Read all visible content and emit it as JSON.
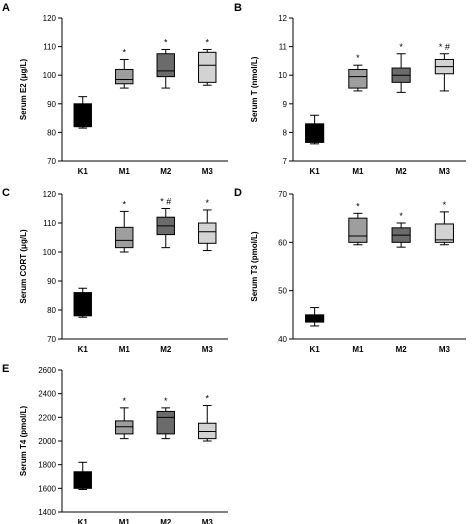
{
  "chart_data": [
    {
      "panel": "A",
      "type": "box",
      "ylabel": "Serum E2 (μg/L)",
      "categories": [
        "K1",
        "M1",
        "M2",
        "M3"
      ],
      "ylim": [
        70,
        120
      ],
      "yticks": [
        70,
        80,
        90,
        100,
        110,
        120
      ],
      "boxes": [
        {
          "min": 81.5,
          "q1": 82,
          "median": 83,
          "q3": 90,
          "max": 92.5,
          "color": "#000000",
          "sig": ""
        },
        {
          "min": 95.5,
          "q1": 97,
          "median": 98.5,
          "q3": 102,
          "max": 105.5,
          "color": "#9e9e9e",
          "sig": "*"
        },
        {
          "min": 95.5,
          "q1": 99.5,
          "median": 101.5,
          "q3": 107.5,
          "max": 109,
          "color": "#6b6b6b",
          "sig": "*"
        },
        {
          "min": 96.5,
          "q1": 97.5,
          "median": 103.5,
          "q3": 108,
          "max": 109,
          "color": "#d3d3d3",
          "sig": "*"
        }
      ]
    },
    {
      "panel": "B",
      "type": "box",
      "ylabel": "Serum T (nmol/L)",
      "categories": [
        "K1",
        "M1",
        "M2",
        "M3"
      ],
      "ylim": [
        7,
        12
      ],
      "yticks": [
        7,
        8,
        9,
        10,
        11,
        12
      ],
      "boxes": [
        {
          "min": 7.6,
          "q1": 7.65,
          "median": 7.7,
          "q3": 8.3,
          "max": 8.6,
          "color": "#000000",
          "sig": ""
        },
        {
          "min": 9.45,
          "q1": 9.55,
          "median": 9.95,
          "q3": 10.2,
          "max": 10.35,
          "color": "#9e9e9e",
          "sig": "*"
        },
        {
          "min": 9.4,
          "q1": 9.75,
          "median": 10.0,
          "q3": 10.25,
          "max": 10.75,
          "color": "#6b6b6b",
          "sig": "*"
        },
        {
          "min": 9.45,
          "q1": 10.05,
          "median": 10.3,
          "q3": 10.55,
          "max": 10.75,
          "color": "#d3d3d3",
          "sig": "* #"
        }
      ]
    },
    {
      "panel": "C",
      "type": "box",
      "ylabel": "Serum CORT (μg/L)",
      "categories": [
        "K1",
        "M1",
        "M2",
        "M3"
      ],
      "ylim": [
        70,
        120
      ],
      "yticks": [
        70,
        80,
        90,
        100,
        110,
        120
      ],
      "boxes": [
        {
          "min": 77.5,
          "q1": 78,
          "median": 78.5,
          "q3": 86,
          "max": 87.5,
          "color": "#000000",
          "sig": ""
        },
        {
          "min": 100,
          "q1": 101.5,
          "median": 104,
          "q3": 108.5,
          "max": 114,
          "color": "#9e9e9e",
          "sig": "*"
        },
        {
          "min": 101.5,
          "q1": 106,
          "median": 109,
          "q3": 112,
          "max": 115,
          "color": "#6b6b6b",
          "sig": "* #"
        },
        {
          "min": 100.5,
          "q1": 103,
          "median": 107,
          "q3": 110,
          "max": 114.5,
          "color": "#d3d3d3",
          "sig": "*"
        }
      ]
    },
    {
      "panel": "D",
      "type": "box",
      "ylabel": "Serum T3 (pmol/L)",
      "categories": [
        "K1",
        "M1",
        "M2",
        "M3"
      ],
      "ylim": [
        40,
        70
      ],
      "yticks": [
        40,
        50,
        60,
        70
      ],
      "boxes": [
        {
          "min": 42.7,
          "q1": 43.5,
          "median": 44.2,
          "q3": 45.0,
          "max": 46.5,
          "color": "#000000",
          "sig": ""
        },
        {
          "min": 59.5,
          "q1": 60.0,
          "median": 61.3,
          "q3": 65.0,
          "max": 66.0,
          "color": "#9e9e9e",
          "sig": "*"
        },
        {
          "min": 59.0,
          "q1": 60.0,
          "median": 61.5,
          "q3": 63.0,
          "max": 64.0,
          "color": "#6b6b6b",
          "sig": "*"
        },
        {
          "min": 59.5,
          "q1": 60.0,
          "median": 60.5,
          "q3": 63.8,
          "max": 66.3,
          "color": "#d3d3d3",
          "sig": "*"
        }
      ]
    },
    {
      "panel": "E",
      "type": "box",
      "ylabel": "Serum T4 (pmol/L)",
      "categories": [
        "K1",
        "M1",
        "M2",
        "M3"
      ],
      "ylim": [
        1400,
        2600
      ],
      "yticks": [
        1400,
        1600,
        1800,
        2000,
        2200,
        2400,
        2600
      ],
      "boxes": [
        {
          "min": 1590,
          "q1": 1600,
          "median": 1610,
          "q3": 1740,
          "max": 1820,
          "color": "#000000",
          "sig": ""
        },
        {
          "min": 2020,
          "q1": 2060,
          "median": 2120,
          "q3": 2170,
          "max": 2280,
          "color": "#9e9e9e",
          "sig": "*"
        },
        {
          "min": 2020,
          "q1": 2060,
          "median": 2200,
          "q3": 2250,
          "max": 2280,
          "color": "#6b6b6b",
          "sig": "*"
        },
        {
          "min": 2000,
          "q1": 2020,
          "median": 2080,
          "q3": 2150,
          "max": 2300,
          "color": "#d3d3d3",
          "sig": "*"
        }
      ]
    }
  ]
}
